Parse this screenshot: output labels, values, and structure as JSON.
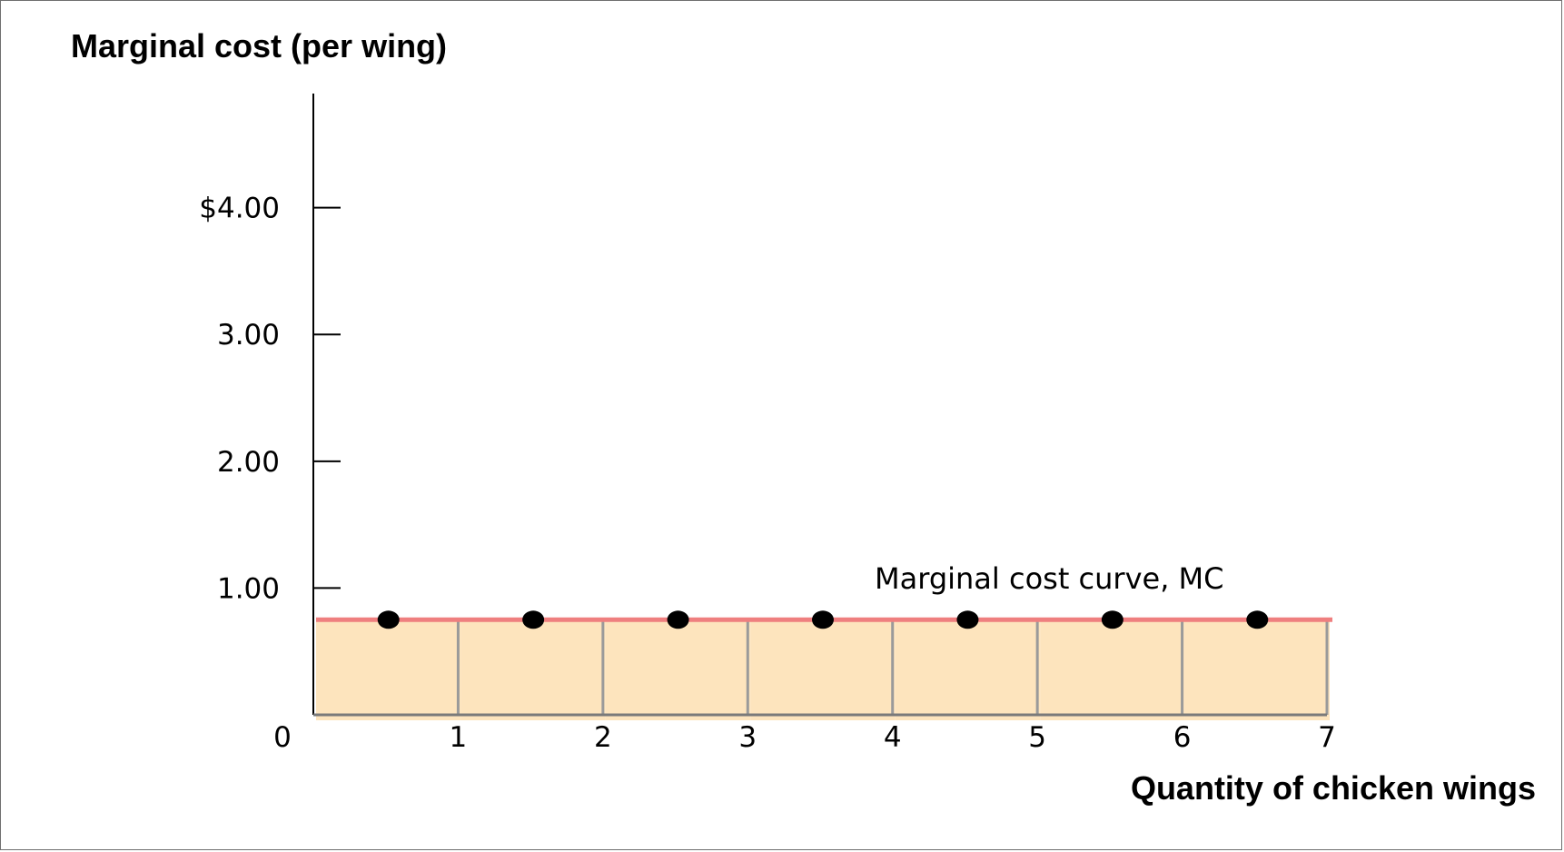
{
  "chart_data": {
    "type": "bar",
    "ylabel": "Marginal cost (per wing)",
    "xlabel": "Quantity of chicken wings",
    "x_ticks": [
      "0",
      "1",
      "2",
      "3",
      "4",
      "5",
      "6",
      "7"
    ],
    "y_ticks": [
      {
        "value": 1.0,
        "label": "1.00"
      },
      {
        "value": 2.0,
        "label": "2.00"
      },
      {
        "value": 3.0,
        "label": "3.00"
      },
      {
        "value": 4.0,
        "label": "$4.00"
      }
    ],
    "xlim": [
      0,
      7
    ],
    "ylim": [
      0,
      4.9
    ],
    "categories": [
      "1",
      "2",
      "3",
      "4",
      "5",
      "6",
      "7"
    ],
    "values": [
      0.75,
      0.75,
      0.75,
      0.75,
      0.75,
      0.75,
      0.75
    ],
    "points": [
      {
        "x": 0.5,
        "y": 0.75
      },
      {
        "x": 1.5,
        "y": 0.75
      },
      {
        "x": 2.5,
        "y": 0.75
      },
      {
        "x": 3.5,
        "y": 0.75
      },
      {
        "x": 4.5,
        "y": 0.75
      },
      {
        "x": 5.5,
        "y": 0.75
      },
      {
        "x": 6.5,
        "y": 0.75
      }
    ],
    "mc_value": 0.75,
    "annotation": "Marginal cost curve, MC",
    "colors": {
      "bars": "#fde4bd",
      "bar_dividers": "#9a9a9a",
      "mc_line": "#ef7f7f",
      "points": "#000000",
      "axes": "#000000"
    },
    "grid": false
  }
}
